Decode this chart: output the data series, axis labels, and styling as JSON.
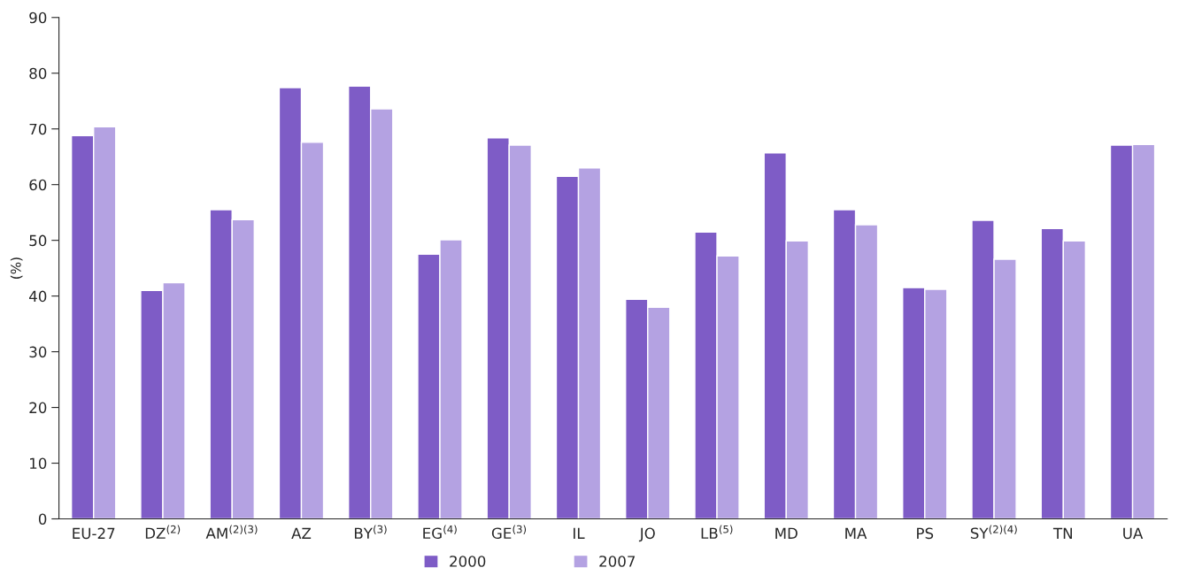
{
  "chart_data": {
    "type": "bar",
    "ylabel": "(%)",
    "categories": [
      "EU-27",
      "DZ$^{(2)}$",
      "AM$^{(2)(3)}$",
      "AZ",
      "BY$^{(3)}$",
      "EG$^{(4)}$",
      "GE$^{(3)}$",
      "IL",
      "JO",
      "LB$^{(5)}$",
      "MD",
      "MA",
      "PS",
      "SY$^{(2)(4)}$",
      "TN",
      "UA"
    ],
    "series": [
      {
        "name": "2000",
        "color": "#7e5cc6",
        "values": [
          68.8,
          41.0,
          55.5,
          77.4,
          77.7,
          47.5,
          68.4,
          61.5,
          39.4,
          51.5,
          65.7,
          55.5,
          41.5,
          53.6,
          52.1,
          67.1
        ]
      },
      {
        "name": "2007",
        "color": "#b4a2e2",
        "values": [
          70.4,
          42.4,
          53.7,
          67.6,
          73.6,
          50.1,
          67.1,
          63.0,
          38.0,
          47.2,
          49.9,
          52.8,
          41.2,
          46.6,
          49.9,
          67.2
        ]
      }
    ],
    "ylim": [
      0,
      90
    ],
    "yticks": [
      0,
      10,
      20,
      30,
      40,
      50,
      60,
      70,
      80,
      90
    ],
    "grid": false,
    "legend": "bottom"
  }
}
